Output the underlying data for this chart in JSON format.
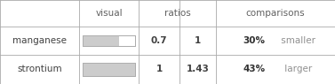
{
  "rows": [
    {
      "name": "manganese",
      "bar_ratio": 0.7,
      "ratio1": "0.7",
      "ratio2": "1",
      "pct": "30%",
      "comparison": " smaller"
    },
    {
      "name": "strontium",
      "bar_ratio": 1.0,
      "ratio1": "1",
      "ratio2": "1.43",
      "pct": "43%",
      "comparison": " larger"
    }
  ],
  "bg_color": "#ffffff",
  "cell_bg": "#f5f5f5",
  "text_color": "#404040",
  "grid_color": "#aaaaaa",
  "bar_fill": "#cccccc",
  "bar_empty": "#ffffff",
  "bar_outline": "#aaaaaa",
  "pct_color": "#303030",
  "comparison_color": "#909090",
  "header_color": "#606060",
  "figwidth": 3.77,
  "figheight": 0.95,
  "fontsize": 7.5
}
